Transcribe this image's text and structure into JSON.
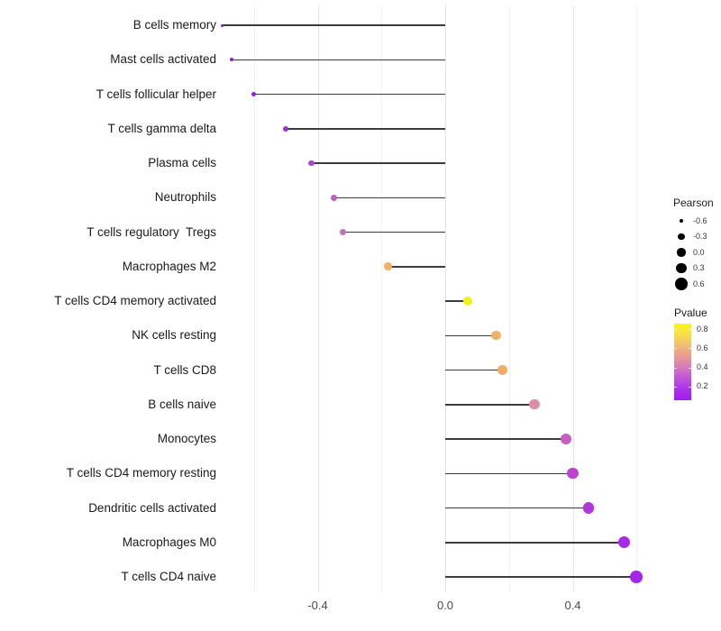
{
  "chart_data": {
    "type": "lollipop",
    "title": "",
    "xlabel": "",
    "ylabel": "",
    "xlim": [
      -0.76,
      0.66
    ],
    "grid": "vertical-only",
    "x_ticks": [
      {
        "label": "-0.4",
        "value": -0.4
      },
      {
        "label": "0.0",
        "value": 0.0
      },
      {
        "label": "0.4",
        "value": 0.4
      }
    ],
    "grid_major_values": [
      -0.4,
      0.0,
      0.4
    ],
    "grid_minor_values": [
      -0.6,
      -0.2,
      0.2,
      0.6
    ],
    "categories": [
      "B cells memory",
      "Mast cells activated",
      "T cells follicular helper",
      "T cells gamma delta",
      "Plasma cells",
      "Neutrophils",
      "T cells regulatory  Tregs",
      "Macrophages M2",
      "T cells CD4 memory activated",
      "NK cells resting",
      "T cells CD8",
      "B cells naive",
      "Monocytes",
      "T cells CD4 memory resting",
      "Dendritic cells activated",
      "Macrophages M0",
      "T cells CD4 naive"
    ],
    "points": [
      {
        "label": "B cells memory",
        "pearson": -0.7,
        "color": "#8A1BD6",
        "radius": 1.5
      },
      {
        "label": "Mast cells activated",
        "pearson": -0.67,
        "color": "#8E1FDA",
        "radius": 2.0
      },
      {
        "label": "T cells follicular helper",
        "pearson": -0.6,
        "color": "#8E22D8",
        "radius": 2.6
      },
      {
        "label": "T cells gamma delta",
        "pearson": -0.5,
        "color": "#9B33D1",
        "radius": 3.0
      },
      {
        "label": "Plasma cells",
        "pearson": -0.42,
        "color": "#A94CC9",
        "radius": 3.3
      },
      {
        "label": "Neutrophils",
        "pearson": -0.35,
        "color": "#C05FBE",
        "radius": 3.5
      },
      {
        "label": "T cells regulatory  Tregs",
        "pearson": -0.32,
        "color": "#CA6FB5",
        "radius": 3.7
      },
      {
        "label": "Macrophages M2",
        "pearson": -0.18,
        "color": "#F1AF68",
        "radius": 4.3
      },
      {
        "label": "T cells CD4 memory activated",
        "pearson": 0.07,
        "color": "#F2F018",
        "radius": 5.0
      },
      {
        "label": "NK cells resting",
        "pearson": 0.16,
        "color": "#F0B066",
        "radius": 5.2
      },
      {
        "label": "T cells CD8",
        "pearson": 0.18,
        "color": "#EFAE63",
        "radius": 5.3
      },
      {
        "label": "B cells naive",
        "pearson": 0.28,
        "color": "#E08CA8",
        "radius": 5.7
      },
      {
        "label": "Monocytes",
        "pearson": 0.38,
        "color": "#C75FC3",
        "radius": 6.0
      },
      {
        "label": "T cells CD4 memory resting",
        "pearson": 0.4,
        "color": "#BE43D0",
        "radius": 6.2
      },
      {
        "label": "Dendritic cells activated",
        "pearson": 0.45,
        "color": "#B236DB",
        "radius": 6.3
      },
      {
        "label": "Macrophages M0",
        "pearson": 0.56,
        "color": "#A72BE6",
        "radius": 6.5
      },
      {
        "label": "T cells CD4 naive",
        "pearson": 0.6,
        "color": "#A326EA",
        "radius": 6.8
      }
    ],
    "legend_size": {
      "title": "Pearson",
      "entries": [
        {
          "label": "-0.6",
          "radius": 2.4
        },
        {
          "label": "-0.3",
          "radius": 3.6
        },
        {
          "label": "0.0",
          "radius": 4.7
        },
        {
          "label": "0.3",
          "radius": 5.7
        },
        {
          "label": "0.6",
          "radius": 6.7
        }
      ]
    },
    "legend_color": {
      "title": "Pvalue",
      "ticks": [
        "0.8",
        "0.6",
        "0.4",
        "0.2"
      ],
      "gradient_top_to_bottom": [
        "#FCF414",
        "#F8DE4C",
        "#F2BC74",
        "#E89B92",
        "#D57ABB",
        "#BF55D9",
        "#AC31EA",
        "#A21DF0"
      ]
    },
    "colors": {
      "stem": "#3c3c3c",
      "grid_major": "#e4e4e4",
      "grid_minor": "#f3f3f3",
      "background": "#ffffff"
    }
  }
}
